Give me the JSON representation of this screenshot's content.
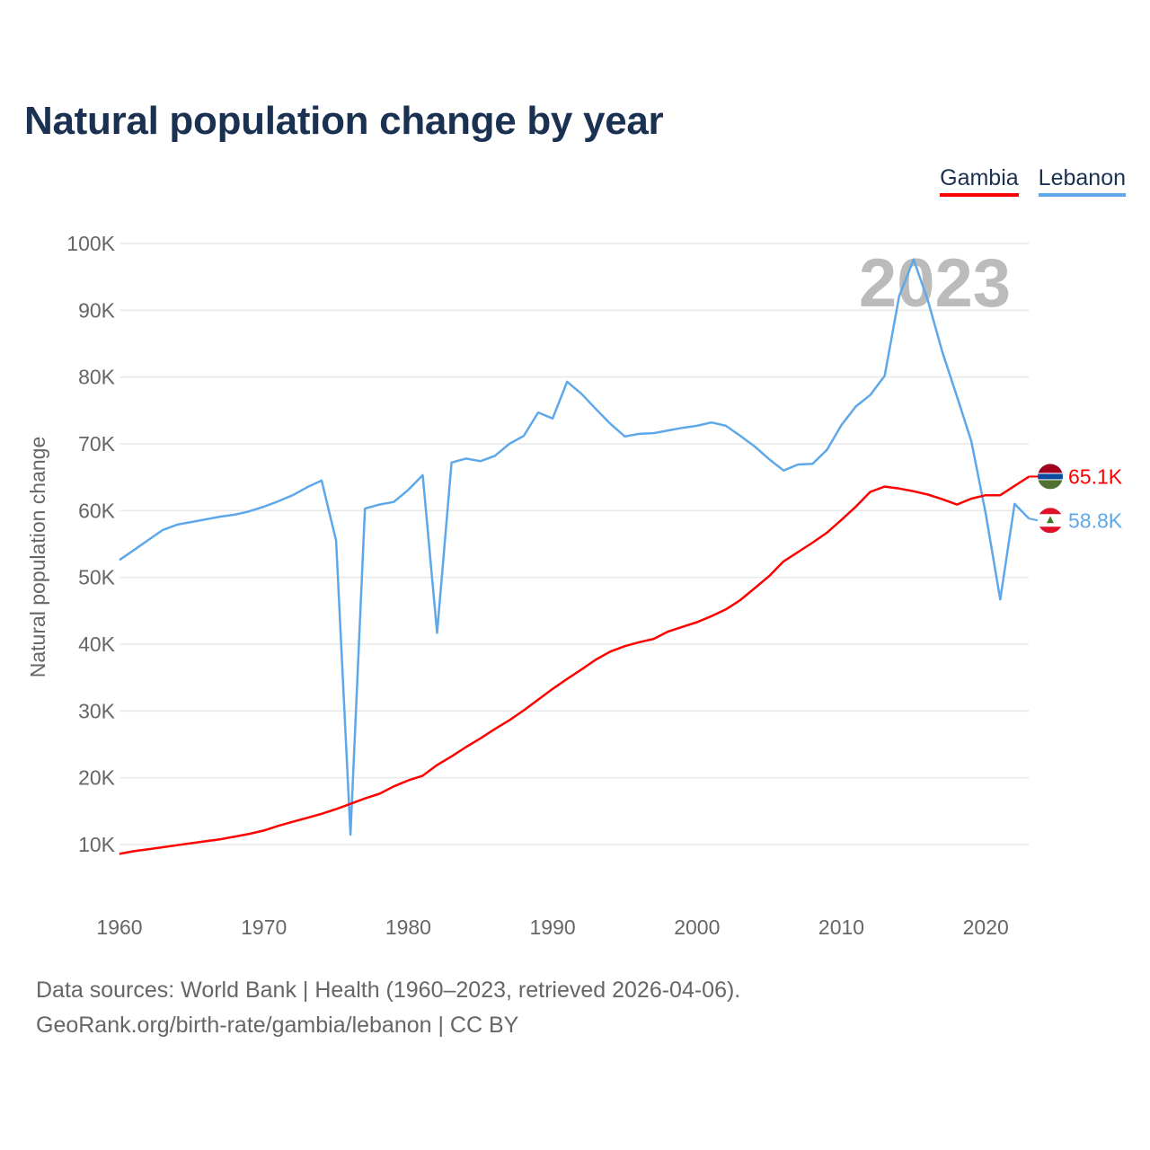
{
  "chart_data": {
    "type": "line",
    "title": "Natural population change by year",
    "ylabel": "Natural population change",
    "xlabel": "",
    "xlim": [
      1960,
      2023
    ],
    "ylim": [
      0,
      100000
    ],
    "x_ticks": [
      1960,
      1970,
      1980,
      1990,
      2000,
      2010,
      2020
    ],
    "y_ticks": [
      10000,
      20000,
      30000,
      40000,
      50000,
      60000,
      70000,
      80000,
      90000,
      100000
    ],
    "y_tick_labels": [
      "10K",
      "20K",
      "30K",
      "40K",
      "50K",
      "60K",
      "70K",
      "80K",
      "90K",
      "100K"
    ],
    "grid": true,
    "legend_placement": "top-right",
    "year_label": "2023",
    "x": [
      1960,
      1961,
      1962,
      1963,
      1964,
      1965,
      1966,
      1967,
      1968,
      1969,
      1970,
      1971,
      1972,
      1973,
      1974,
      1975,
      1976,
      1977,
      1978,
      1979,
      1980,
      1981,
      1982,
      1983,
      1984,
      1985,
      1986,
      1987,
      1988,
      1989,
      1990,
      1991,
      1992,
      1993,
      1994,
      1995,
      1996,
      1997,
      1998,
      1999,
      2000,
      2001,
      2002,
      2003,
      2004,
      2005,
      2006,
      2007,
      2008,
      2009,
      2010,
      2011,
      2012,
      2013,
      2014,
      2015,
      2016,
      2017,
      2018,
      2019,
      2020,
      2021,
      2022,
      2023
    ],
    "series": [
      {
        "name": "Gambia",
        "color": "#ff0000",
        "end_label": "65.1K",
        "flag": "gambia-flag",
        "values": [
          8600,
          9000,
          9300,
          9600,
          9900,
          10200,
          10500,
          10800,
          11200,
          11600,
          12100,
          12800,
          13400,
          14000,
          14600,
          15300,
          16100,
          16900,
          17600,
          18700,
          19600,
          20300,
          21900,
          23200,
          24600,
          25900,
          27300,
          28600,
          30100,
          31700,
          33300,
          34800,
          36200,
          37700,
          38900,
          39700,
          40300,
          40800,
          41900,
          42600,
          43300,
          44200,
          45200,
          46600,
          48400,
          50200,
          52400,
          53800,
          55200,
          56700,
          58600,
          60600,
          62800,
          63600,
          63300,
          62900,
          62400,
          61700,
          60900,
          61800,
          62300,
          62300,
          63700,
          65100
        ]
      },
      {
        "name": "Lebanon",
        "color": "#5ea8ea",
        "end_label": "58.8K",
        "flag": "lebanon-flag",
        "values": [
          52600,
          54100,
          55600,
          57100,
          57900,
          58300,
          58700,
          59100,
          59400,
          59900,
          60600,
          61400,
          62300,
          63500,
          64500,
          55500,
          11500,
          60300,
          60900,
          61300,
          63100,
          65300,
          41700,
          67200,
          67800,
          67400,
          68200,
          70000,
          71200,
          74700,
          73800,
          79300,
          77500,
          75200,
          73000,
          71100,
          71500,
          71600,
          72000,
          72400,
          72700,
          73200,
          72700,
          71200,
          69600,
          67700,
          66000,
          66900,
          67000,
          69100,
          72800,
          75600,
          77300,
          80200,
          92100,
          97600,
          91400,
          83700,
          77100,
          70400,
          59500,
          46700,
          61000,
          58800
        ]
      }
    ]
  },
  "footer": {
    "sources": "Data sources: World Bank | Health (1960–2023, retrieved 2026-04-06).",
    "credit": "GeoRank.org/birth-rate/gambia/lebanon | CC BY"
  }
}
